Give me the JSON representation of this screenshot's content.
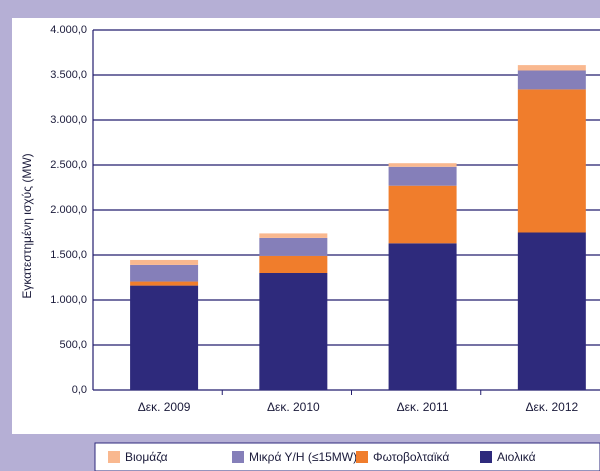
{
  "chart_data": {
    "type": "stacked_bar",
    "y_axis_label": "Εγκατεστημένη ισχύς (MW)",
    "categories": [
      "Δεκ. 2009",
      "Δεκ. 2010",
      "Δεκ. 2011",
      "Δεκ. 2012"
    ],
    "series": [
      {
        "name": "Αιολικά",
        "color": "#2e2a7c",
        "values": [
          1160,
          1300,
          1630,
          1750
        ]
      },
      {
        "name": "Φωτοβολταϊκά",
        "color": "#f07d2c",
        "values": [
          45,
          190,
          640,
          1590
        ]
      },
      {
        "name": "Μικρά Υ/Η (≤15MW)",
        "color": "#857fb9",
        "values": [
          185,
          200,
          210,
          210
        ]
      },
      {
        "name": "Βιομάζα",
        "color": "#f9b88f",
        "values": [
          55,
          50,
          40,
          60
        ]
      }
    ],
    "ylim": [
      0,
      4000
    ],
    "yticks": [
      {
        "value": 0,
        "label": "0,0"
      },
      {
        "value": 500,
        "label": "500,0"
      },
      {
        "value": 1000,
        "label": "1.000,0"
      },
      {
        "value": 1500,
        "label": "1.500,0"
      },
      {
        "value": 2000,
        "label": "2.000,0"
      },
      {
        "value": 2500,
        "label": "2.500,0"
      },
      {
        "value": 3000,
        "label": "3.000,0"
      },
      {
        "value": 3500,
        "label": "3.500,0"
      },
      {
        "value": 4000,
        "label": "4.000,0"
      }
    ],
    "grid": true
  }
}
